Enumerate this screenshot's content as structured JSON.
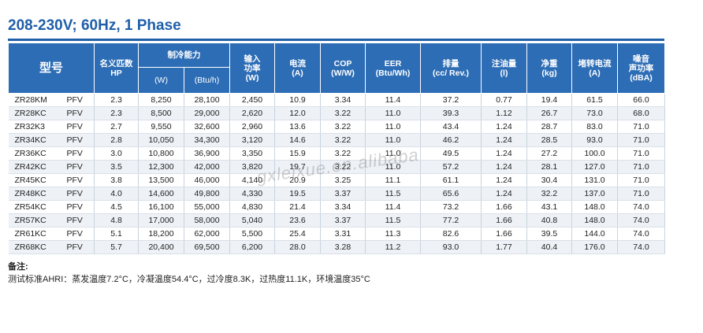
{
  "title": "208-230V; 60Hz, 1 Phase",
  "headers": {
    "model": "型号",
    "hp": [
      "名义匹数",
      "HP"
    ],
    "capacity": "制冷能力",
    "capacity_w": "(W)",
    "capacity_btu": "(Btu/h)",
    "input": [
      "输入",
      "功率",
      "(W)"
    ],
    "current": [
      "电流",
      "(A)"
    ],
    "cop": [
      "COP",
      "(W/W)"
    ],
    "eer": [
      "EER",
      "(Btu/Wh)"
    ],
    "displacement": [
      "排量",
      "(cc/ Rev.)"
    ],
    "oil": [
      "注油量",
      "(l)"
    ],
    "weight": [
      "净重",
      "(kg)"
    ],
    "lra": [
      "堵转电流",
      "(A)"
    ],
    "noise": [
      "噪音",
      "声功率",
      "(dBA)"
    ]
  },
  "rows": [
    [
      "ZR28KM",
      "PFV",
      "2.3",
      "8,250",
      "28,100",
      "2,450",
      "10.9",
      "3.34",
      "11.4",
      "37.2",
      "0.77",
      "19.4",
      "61.5",
      "66.0"
    ],
    [
      "ZR28KC",
      "PFV",
      "2.3",
      "8,500",
      "29,000",
      "2,620",
      "12.0",
      "3.22",
      "11.0",
      "39.3",
      "1.12",
      "26.7",
      "73.0",
      "68.0"
    ],
    [
      "ZR32K3",
      "PFV",
      "2.7",
      "9,550",
      "32,600",
      "2,960",
      "13.6",
      "3.22",
      "11.0",
      "43.4",
      "1.24",
      "28.7",
      "83.0",
      "71.0"
    ],
    [
      "ZR34KC",
      "PFV",
      "2.8",
      "10,050",
      "34,300",
      "3,120",
      "14.6",
      "3.22",
      "11.0",
      "46.2",
      "1.24",
      "28.5",
      "93.0",
      "71.0"
    ],
    [
      "ZR36KC",
      "PFV",
      "3.0",
      "10,800",
      "36,900",
      "3,350",
      "15.9",
      "3.22",
      "11.0",
      "49.5",
      "1.24",
      "27.2",
      "100.0",
      "71.0"
    ],
    [
      "ZR42KC",
      "PFV",
      "3.5",
      "12,300",
      "42,000",
      "3,820",
      "19.7",
      "3.22",
      "11.0",
      "57.2",
      "1.24",
      "28.1",
      "127.0",
      "71.0"
    ],
    [
      "ZR45KC",
      "PFV",
      "3.8",
      "13,500",
      "46,000",
      "4,140",
      "20.9",
      "3.25",
      "11.1",
      "61.1",
      "1.24",
      "30.4",
      "131.0",
      "71.0"
    ],
    [
      "ZR48KC",
      "PFV",
      "4.0",
      "14,600",
      "49,800",
      "4,330",
      "19.5",
      "3.37",
      "11.5",
      "65.6",
      "1.24",
      "32.2",
      "137.0",
      "71.0"
    ],
    [
      "ZR54KC",
      "PFV",
      "4.5",
      "16,100",
      "55,000",
      "4,830",
      "21.4",
      "3.34",
      "11.4",
      "73.2",
      "1.66",
      "43.1",
      "148.0",
      "74.0"
    ],
    [
      "ZR57KC",
      "PFV",
      "4.8",
      "17,000",
      "58,000",
      "5,040",
      "23.6",
      "3.37",
      "11.5",
      "77.2",
      "1.66",
      "40.8",
      "148.0",
      "74.0"
    ],
    [
      "ZR61KC",
      "PFV",
      "5.1",
      "18,200",
      "62,000",
      "5,500",
      "25.4",
      "3.31",
      "11.3",
      "82.6",
      "1.66",
      "39.5",
      "144.0",
      "74.0"
    ],
    [
      "ZR68KC",
      "PFV",
      "5.7",
      "20,400",
      "69,500",
      "6,200",
      "28.0",
      "3.28",
      "11.2",
      "93.0",
      "1.77",
      "40.4",
      "176.0",
      "74.0"
    ]
  ],
  "notes": {
    "title": "备注:",
    "text": "测试标准AHRI：蒸发温度7.2°C，冷凝温度54.4°C，过冷度8.3K，过热度11.1K，环境温度35°C"
  },
  "watermark": "gxleixue.en.alibaba"
}
